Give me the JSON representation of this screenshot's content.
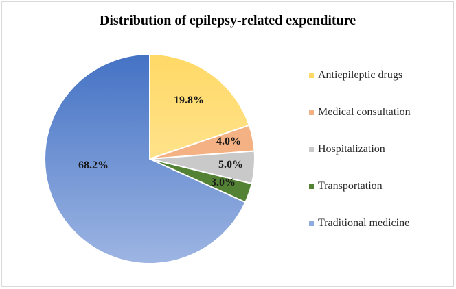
{
  "chart_data": {
    "type": "pie",
    "title": "Distribution of epilepsy-related expenditure",
    "legend_position": "right",
    "slices": [
      {
        "name": "Antiepileptic drugs",
        "value": 19.8,
        "label": "19.8%",
        "color": "#FFD966"
      },
      {
        "name": "Medical consultation",
        "value": 4.0,
        "label": "4.0%",
        "color": "#F4B183"
      },
      {
        "name": "Hospitalization",
        "value": 5.0,
        "label": "5.0%",
        "color": "#C9C9C9"
      },
      {
        "name": "Transportation",
        "value": 3.0,
        "label": "3.0%",
        "color": "#548235"
      },
      {
        "name": "Traditional medicine",
        "value": 68.2,
        "label": "68.2%",
        "color": "#8FAADC"
      }
    ]
  }
}
